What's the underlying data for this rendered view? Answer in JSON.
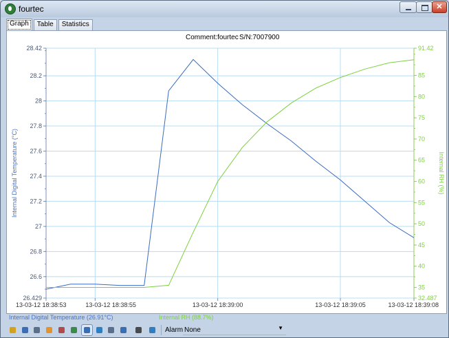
{
  "window": {
    "title": "fourtec"
  },
  "tabs": [
    {
      "label": "Graph",
      "active": true
    },
    {
      "label": "Table",
      "active": false
    },
    {
      "label": "Statistics",
      "active": false
    }
  ],
  "header": {
    "comment": "Comment:fourtec",
    "serial": "S/N:7007900"
  },
  "chart_data": {
    "type": "line",
    "grid": true,
    "xlim": [
      "13-03-12 18:38:53",
      "13-03-12 18:39:08"
    ],
    "x_ticks": [
      "13-03-12 18:38:53",
      "13-03-12 18:38:55",
      "13-03-12 18:39:00",
      "13-03-12 18:39:05",
      "13-03-12 18:39:08"
    ],
    "left_axis": {
      "label": "Internal Digital Temperature (°C)",
      "range": [
        26.429,
        28.42
      ],
      "ticks": [
        "28.42",
        "28.2",
        "28",
        "27.8",
        "27.6",
        "27.4",
        "27.2",
        "27",
        "26.8",
        "26.6",
        "26.429"
      ],
      "color": "#3a6bc0"
    },
    "right_axis": {
      "label": "Internal RH (%)",
      "range": [
        32.487,
        91.42
      ],
      "ticks": [
        "91.42",
        "85",
        "80",
        "75",
        "70",
        "65",
        "60",
        "55",
        "50",
        "45",
        "40",
        "35",
        "32.487"
      ],
      "color": "#7dd13d"
    },
    "series": [
      {
        "name": "Internal Digital Temperature",
        "axis": "left",
        "color": "#3a6bc0",
        "points": [
          [
            "13-03-12 18:38:53",
            26.5
          ],
          [
            "13-03-12 18:38:54",
            26.54
          ],
          [
            "13-03-12 18:38:55",
            26.54
          ],
          [
            "13-03-12 18:38:56",
            26.53
          ],
          [
            "13-03-12 18:38:57",
            26.53
          ],
          [
            "13-03-12 18:38:58",
            28.08
          ],
          [
            "13-03-12 18:38:59",
            28.33
          ],
          [
            "13-03-12 18:39:00",
            28.14
          ],
          [
            "13-03-12 18:39:01",
            27.97
          ],
          [
            "13-03-12 18:39:02",
            27.82
          ],
          [
            "13-03-12 18:39:03",
            27.68
          ],
          [
            "13-03-12 18:39:04",
            27.52
          ],
          [
            "13-03-12 18:39:05",
            27.37
          ],
          [
            "13-03-12 18:39:06",
            27.2
          ],
          [
            "13-03-12 18:39:07",
            27.03
          ],
          [
            "13-03-12 18:39:08",
            26.91
          ]
        ]
      },
      {
        "name": "Internal RH",
        "axis": "right",
        "color": "#7dd13d",
        "points": [
          [
            "13-03-12 18:38:53",
            35.0
          ],
          [
            "13-03-12 18:38:54",
            35.0
          ],
          [
            "13-03-12 18:38:55",
            35.0
          ],
          [
            "13-03-12 18:38:56",
            35.0
          ],
          [
            "13-03-12 18:38:57",
            35.0
          ],
          [
            "13-03-12 18:38:58",
            35.5
          ],
          [
            "13-03-12 18:38:59",
            48.0
          ],
          [
            "13-03-12 18:39:00",
            60.0
          ],
          [
            "13-03-12 18:39:01",
            68.0
          ],
          [
            "13-03-12 18:39:02",
            74.0
          ],
          [
            "13-03-12 18:39:03",
            78.5
          ],
          [
            "13-03-12 18:39:04",
            82.0
          ],
          [
            "13-03-12 18:39:05",
            84.5
          ],
          [
            "13-03-12 18:39:06",
            86.5
          ],
          [
            "13-03-12 18:39:07",
            88.0
          ],
          [
            "13-03-12 18:39:08",
            88.7
          ]
        ]
      }
    ]
  },
  "legend": {
    "left": "Internal Digital Temperature (26.91°C)",
    "right": "Internal RH (88.7%)"
  },
  "toolbar": {
    "icons": [
      "pen-icon",
      "zoom-area-icon",
      "magnifier-icon",
      "hand-icon",
      "sensor-left-icon",
      "sensor-right-icon",
      "grid-icon",
      "marker-icon",
      "print-icon",
      "list-icon",
      "cut-icon",
      "satellite-icon"
    ],
    "alarm_label": "Alarm",
    "alarm_value": "None"
  }
}
